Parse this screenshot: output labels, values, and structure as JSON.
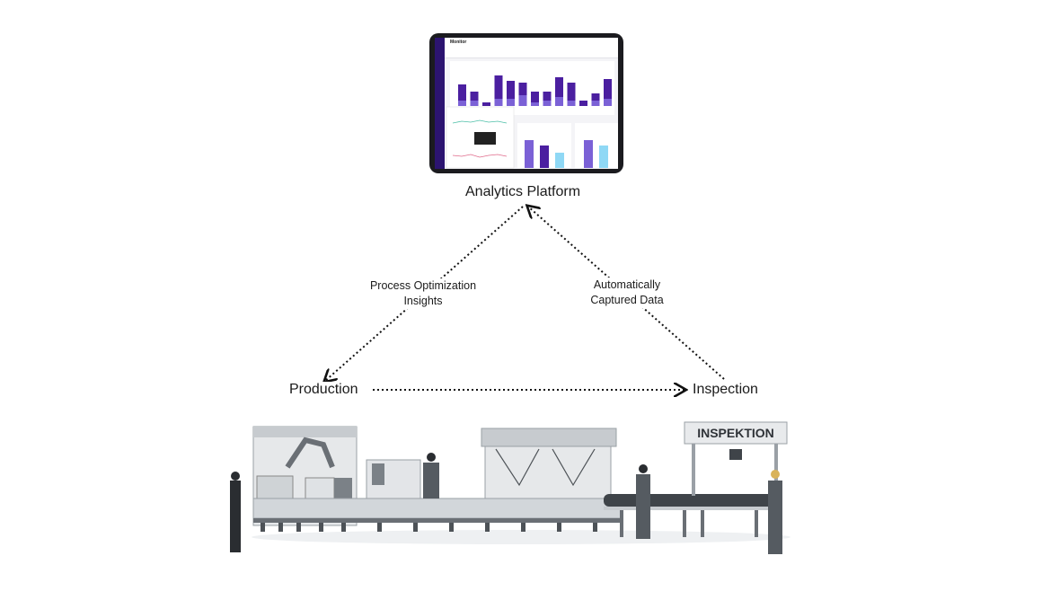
{
  "nodes": {
    "analytics": "Analytics Platform",
    "production": "Production",
    "inspection": "Inspection"
  },
  "edges": {
    "left": [
      "Process Optimization",
      "Insights"
    ],
    "right": [
      "Automatically",
      "Captured Data"
    ]
  },
  "tablet": {
    "screen_title": "Monitor",
    "bar_colors": [
      "#4b1fa0",
      "#7b61d6",
      "#8fd8f5"
    ]
  },
  "factory": {
    "sign": "INSPEKTION"
  }
}
